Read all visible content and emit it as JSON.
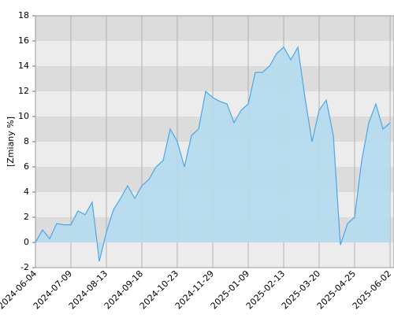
{
  "chart_data": {
    "type": "area",
    "y_label": "[Zmiany %]",
    "categories": [
      "2024-06-04",
      null,
      null,
      null,
      null,
      "2024-07-09",
      null,
      null,
      null,
      null,
      "2024-08-13",
      null,
      null,
      null,
      null,
      "2024-09-18",
      null,
      null,
      null,
      null,
      "2024-10-23",
      null,
      null,
      null,
      null,
      "2024-11-29",
      null,
      null,
      null,
      null,
      "2025-01-09",
      null,
      null,
      null,
      null,
      "2025-02-13",
      null,
      null,
      null,
      null,
      "2025-03-20",
      null,
      null,
      null,
      null,
      "2025-04-25",
      null,
      null,
      null,
      null,
      "2025-06-02"
    ],
    "values": [
      0,
      1.0,
      0.3,
      1.5,
      1.4,
      1.4,
      2.5,
      2.2,
      3.2,
      -1.5,
      0.8,
      2.6,
      3.5,
      4.5,
      3.5,
      4.5,
      5.0,
      6.0,
      6.5,
      9.0,
      8.0,
      6.0,
      8.5,
      9.0,
      12.0,
      11.5,
      11.2,
      11.0,
      9.5,
      10.5,
      11.0,
      13.5,
      13.5,
      14.0,
      15.0,
      15.5,
      14.5,
      15.5,
      11.5,
      8.0,
      10.5,
      11.3,
      8.5,
      -0.2,
      1.5,
      2.0,
      6.5,
      9.5,
      11.0,
      9.0,
      9.5
    ],
    "color": "#4da6e8",
    "fill": "#b4dcee",
    "ylim": [
      -2,
      18
    ],
    "yticks": [
      -2,
      0,
      2,
      4,
      6,
      8,
      10,
      12,
      14,
      16,
      18
    ],
    "grid": true
  }
}
